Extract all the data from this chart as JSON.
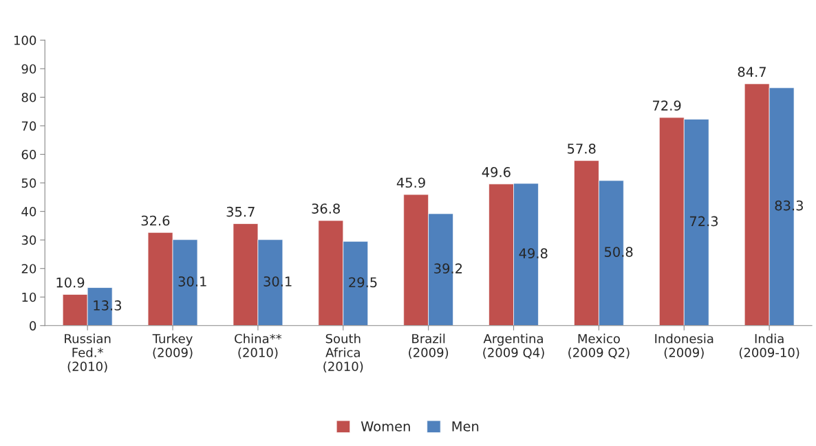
{
  "chart_data": {
    "type": "bar",
    "categories": [
      "Russian\nFed.*\n(2010)",
      "Turkey\n(2009)",
      "China**\n(2010)",
      "South\nAfrica\n(2010)",
      "Brazil\n(2009)",
      "Argentina\n(2009 Q4)",
      "Mexico\n(2009 Q2)",
      "Indonesia\n(2009)",
      "India\n(2009-10)"
    ],
    "series": [
      {
        "name": "Women",
        "color": "#c0504d",
        "values": [
          10.9,
          32.6,
          35.7,
          36.8,
          45.9,
          49.6,
          57.8,
          72.9,
          84.7
        ]
      },
      {
        "name": "Men",
        "color": "#4f81bd",
        "values": [
          13.3,
          30.1,
          30.1,
          29.5,
          39.2,
          49.8,
          50.8,
          72.3,
          83.3
        ]
      }
    ],
    "ylim": [
      0,
      100
    ],
    "yticks": [
      0,
      10,
      20,
      30,
      40,
      50,
      60,
      70,
      80,
      90,
      100
    ],
    "data_labels": true,
    "grid": false,
    "legend": "bottom"
  }
}
